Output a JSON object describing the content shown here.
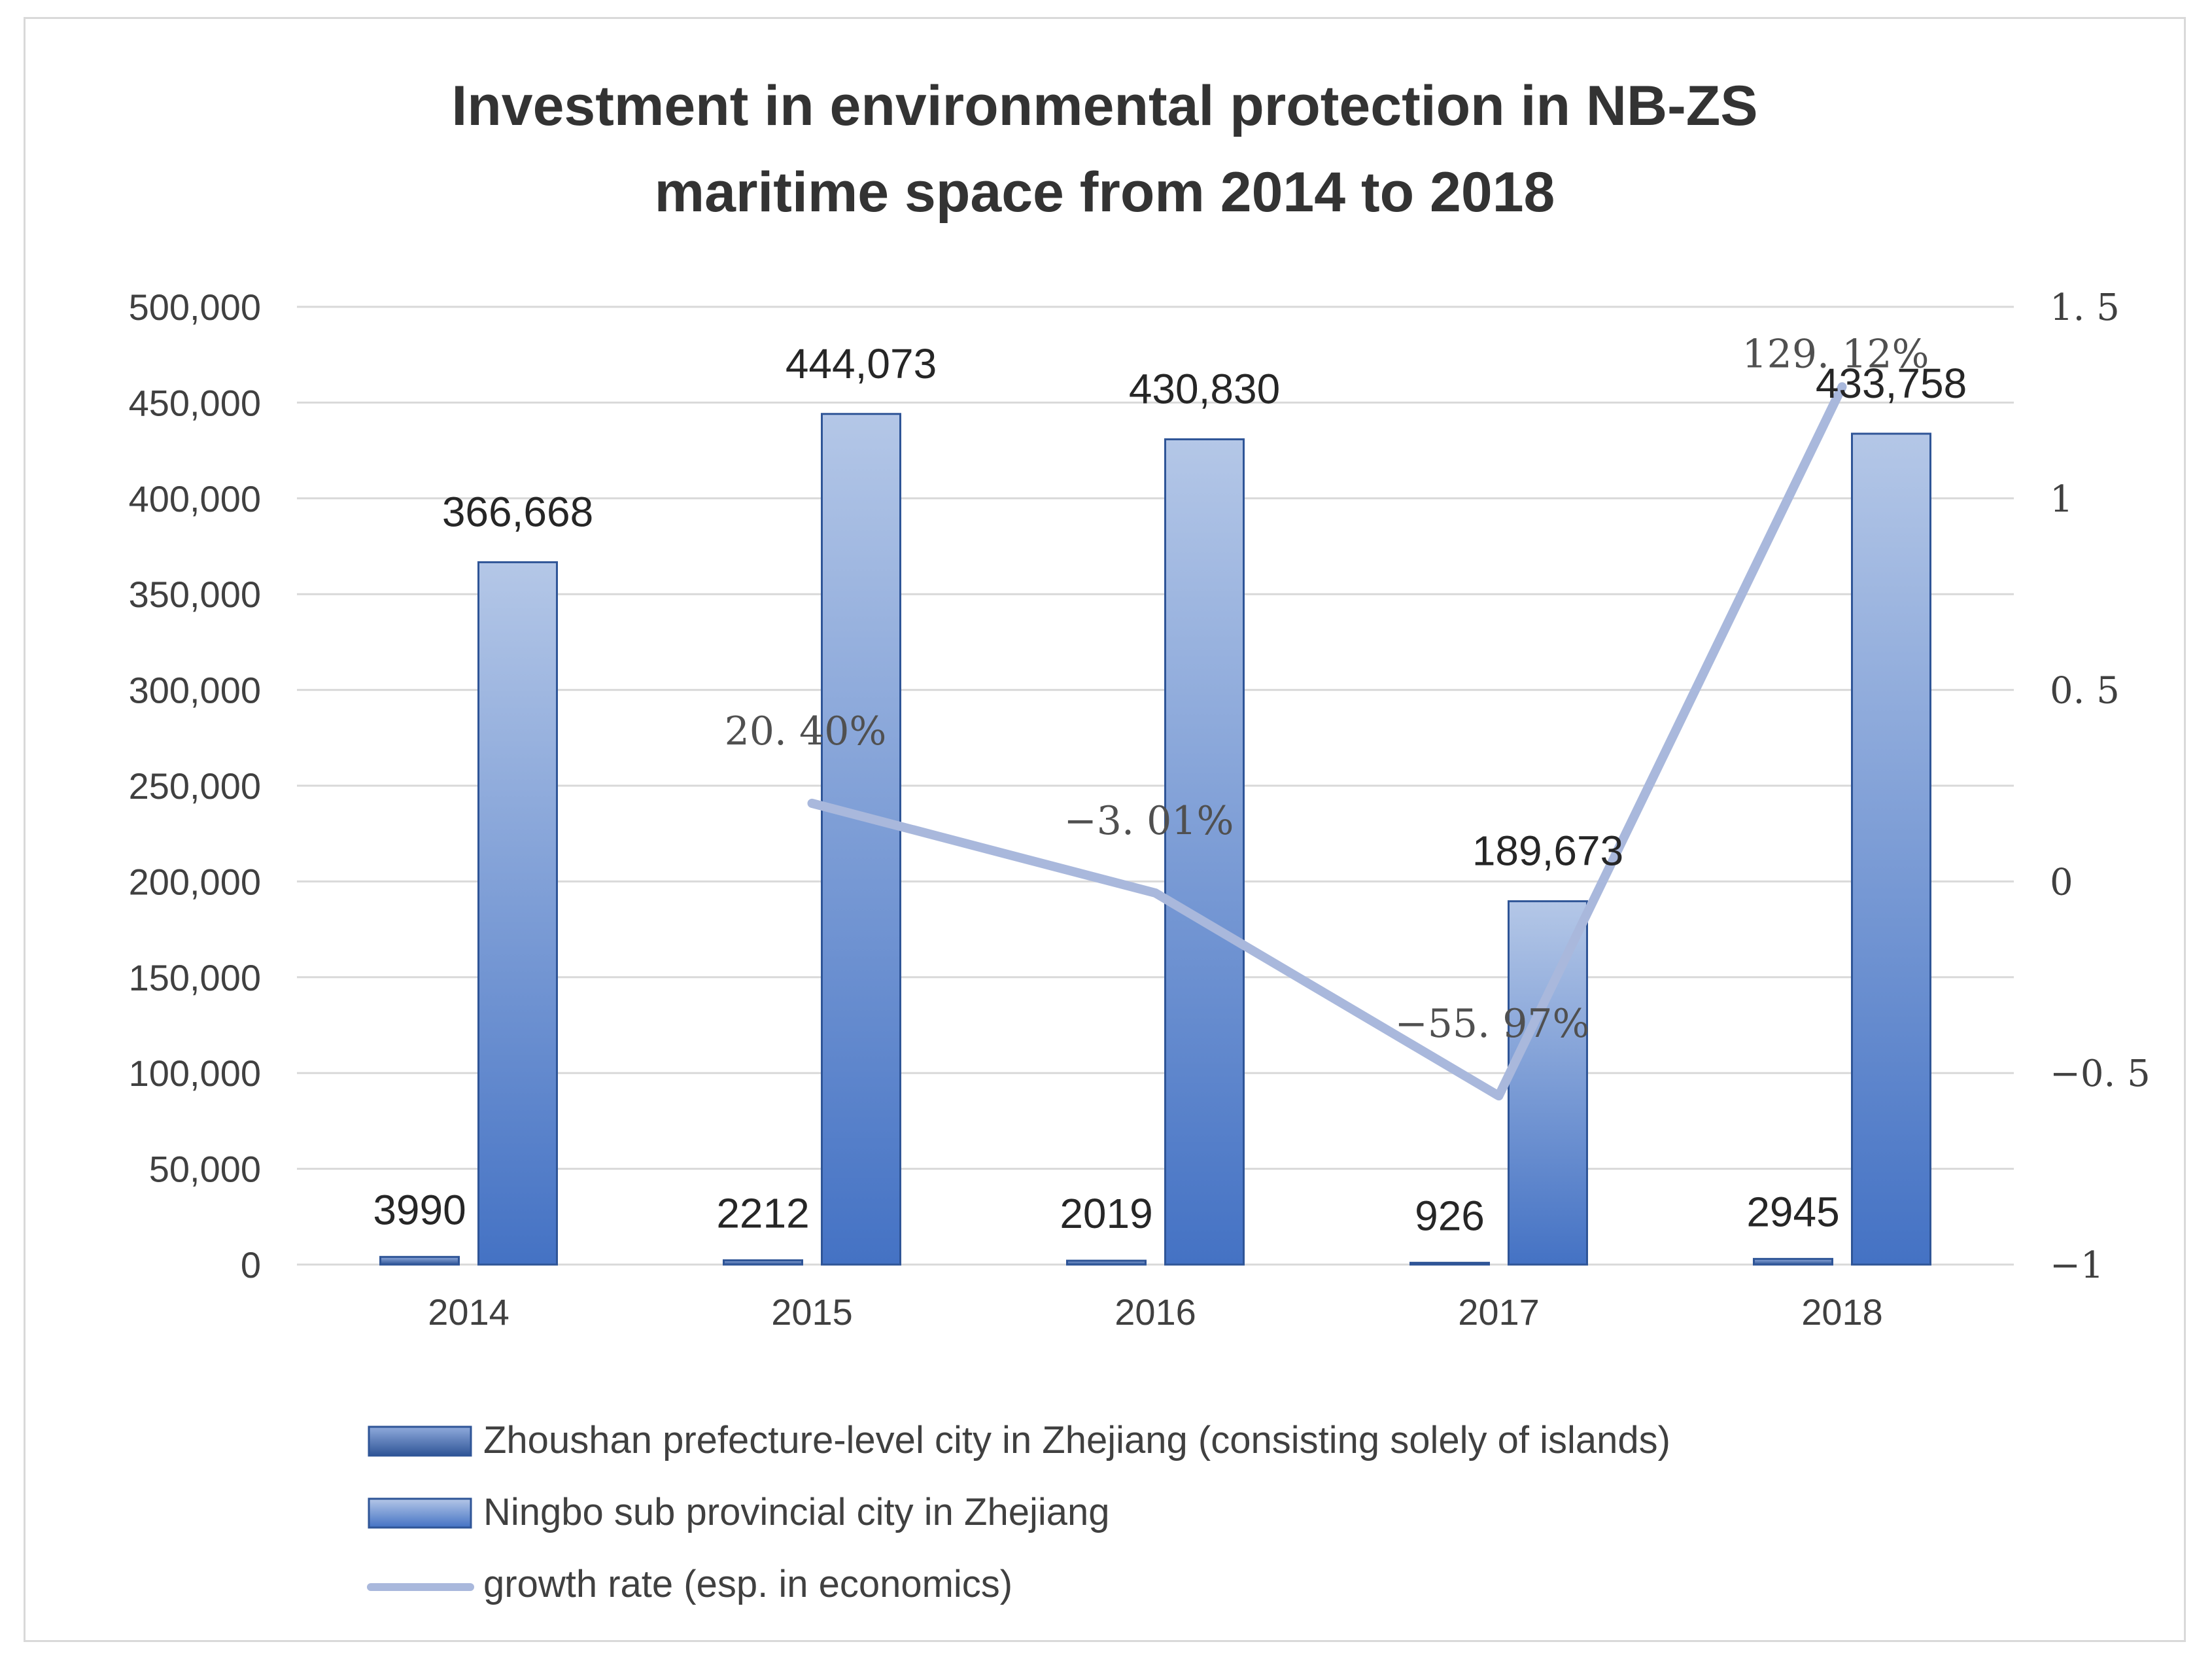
{
  "chart_data": {
    "type": "bar",
    "title_lines": [
      "Investment in environmental protection in NB-ZS",
      "maritime space from 2014 to 2018"
    ],
    "categories": [
      "2014",
      "2015",
      "2016",
      "2017",
      "2018"
    ],
    "series": [
      {
        "name": "Zhoushan prefecture-level city in Zhejiang (consisting solely of islands)",
        "kind": "bar",
        "axis": "left",
        "values": [
          3990,
          2212,
          2019,
          926,
          2945
        ],
        "labels": [
          "3990",
          "2212",
          "2019",
          "926",
          "2945"
        ]
      },
      {
        "name": "Ningbo sub provincial city in Zhejiang",
        "kind": "bar",
        "axis": "left",
        "values": [
          366668,
          444073,
          430830,
          189673,
          433758
        ],
        "labels": [
          "366,668",
          "444,073",
          "430,830",
          "189,673",
          "433,758"
        ]
      },
      {
        "name": "growth rate (esp. in economics)",
        "kind": "line",
        "axis": "right",
        "values": [
          null,
          0.204,
          -0.0301,
          -0.5597,
          1.2912
        ],
        "labels": [
          "",
          "20. 40%",
          "−3. 01%",
          "−55. 97%",
          "129. 12%"
        ]
      }
    ],
    "y_left": {
      "min": 0,
      "max": 500000,
      "step": 50000,
      "ticks": [
        "0",
        "50,000",
        "100,000",
        "150,000",
        "200,000",
        "250,000",
        "300,000",
        "350,000",
        "400,000",
        "450,000",
        "500,000"
      ]
    },
    "y_right": {
      "min": -1,
      "max": 1.5,
      "step": 0.5,
      "ticks": [
        "−1",
        "−0. 5",
        "0",
        "0. 5",
        "1",
        "1. 5"
      ]
    },
    "grid": true,
    "legend_position": "bottom-left"
  },
  "colors": {
    "gridline": "#d9d9d9",
    "bar_top": "#b4c7e7",
    "bar_bottom": "#4472c4",
    "bar_outline": "#2f5597",
    "small_bar_top": "#8faadc",
    "small_bar_bottom": "#2f5597",
    "line": "#a9b8dc"
  }
}
